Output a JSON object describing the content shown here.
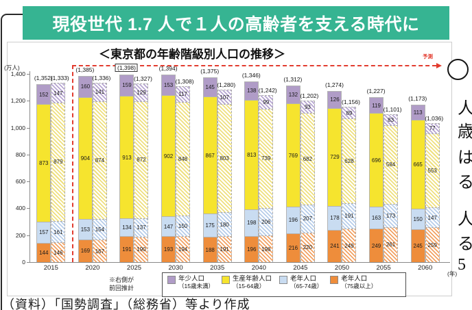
{
  "header": {
    "title": "現役世代 1.7 人で１人の高齢者を支える時代に",
    "bg_color": "#36b492"
  },
  "source_note": "（資料）「国勢調査」（総務省）等より作成",
  "side_annotation": {
    "clipped_chars": [
      "人",
      "歳",
      "は",
      "る",
      "人",
      "る",
      "5"
    ]
  },
  "chart_data": {
    "type": "bar",
    "stacked": true,
    "title": "＜東京都の年齢階級別人口の推移＞",
    "y_axis_unit": "(万人)",
    "x_axis_unit": "(年)",
    "ylim": [
      0,
      1400
    ],
    "yticks": [
      "0",
      "200",
      "400",
      "600",
      "800",
      "1,000",
      "1,200",
      "1,400"
    ],
    "grid": false,
    "forecast": {
      "label": "予測",
      "from_category_index": 1,
      "color": "#e23b2e"
    },
    "note_lines": [
      "※右側が",
      "前回推計"
    ],
    "categories": [
      "2015",
      "2020",
      "2025",
      "2030",
      "2035",
      "2040",
      "2045",
      "2050",
      "2055",
      "2060"
    ],
    "stack_order_bottom_to_top": [
      "old75",
      "old65",
      "working",
      "young"
    ],
    "legend": [
      {
        "key": "young",
        "label": "年少人口",
        "sub": "（15歳未満）",
        "color": "#b09cc7",
        "hatch_color": "#b6a5d1"
      },
      {
        "key": "working",
        "label": "生産年齢人口",
        "sub": "（15-64歳）",
        "color": "#f6e42e",
        "hatch_color": "#efe07e"
      },
      {
        "key": "old65",
        "label": "老年人口",
        "sub": "（65-74歳）",
        "color": "#c9dcf1",
        "hatch_color": "#b7cde9"
      },
      {
        "key": "old75",
        "label": "老年人口",
        "sub": "（75歳以上）",
        "color": "#ee8d3b",
        "hatch_color": "#f2a263"
      }
    ],
    "series": [
      {
        "id": "current",
        "style": "solid",
        "totals": [
          "(1,352)",
          "(1,385)",
          "(1,398)",
          "(1,394)",
          "(1,375)",
          "(1,346)",
          "(1,312)",
          "(1,274)",
          "(1,227)",
          "(1,173)"
        ],
        "values": {
          "young": [
            152,
            160,
            159,
            153,
            145,
            138,
            132,
            126,
            119,
            113
          ],
          "working": [
            873,
            904,
            913,
            902,
            867,
            813,
            769,
            729,
            696,
            665
          ],
          "old65": [
            157,
            153,
            134,
            147,
            175,
            198,
            196,
            178,
            163,
            150
          ],
          "old75": [
            144,
            169,
            191,
            193,
            188,
            196,
            216,
            241,
            249,
            245
          ]
        }
      },
      {
        "id": "previous",
        "style": "hatched",
        "totals": [
          "(1,333)",
          "(1,336)",
          "(1,327)",
          "(1,308)",
          "(1,280)",
          "(1,242)",
          "(1,202)",
          "(1,156)",
          "(1,101)",
          "(1,036)"
        ],
        "values": {
          "young": [
            147,
            141,
            129,
            117,
            107,
            99,
            93,
            89,
            83,
            77
          ],
          "working": [
            879,
            874,
            872,
            848,
            803,
            739,
            682,
            628,
            584,
            553
          ],
          "old65": [
            161,
            154,
            137,
            150,
            180,
            206,
            207,
            191,
            173,
            147
          ],
          "old75": [
            146,
            167,
            190,
            194,
            191,
            198,
            220,
            249,
            261,
            259
          ]
        }
      }
    ],
    "highlight_total": {
      "series_index": 0,
      "category_index": 2
    }
  }
}
